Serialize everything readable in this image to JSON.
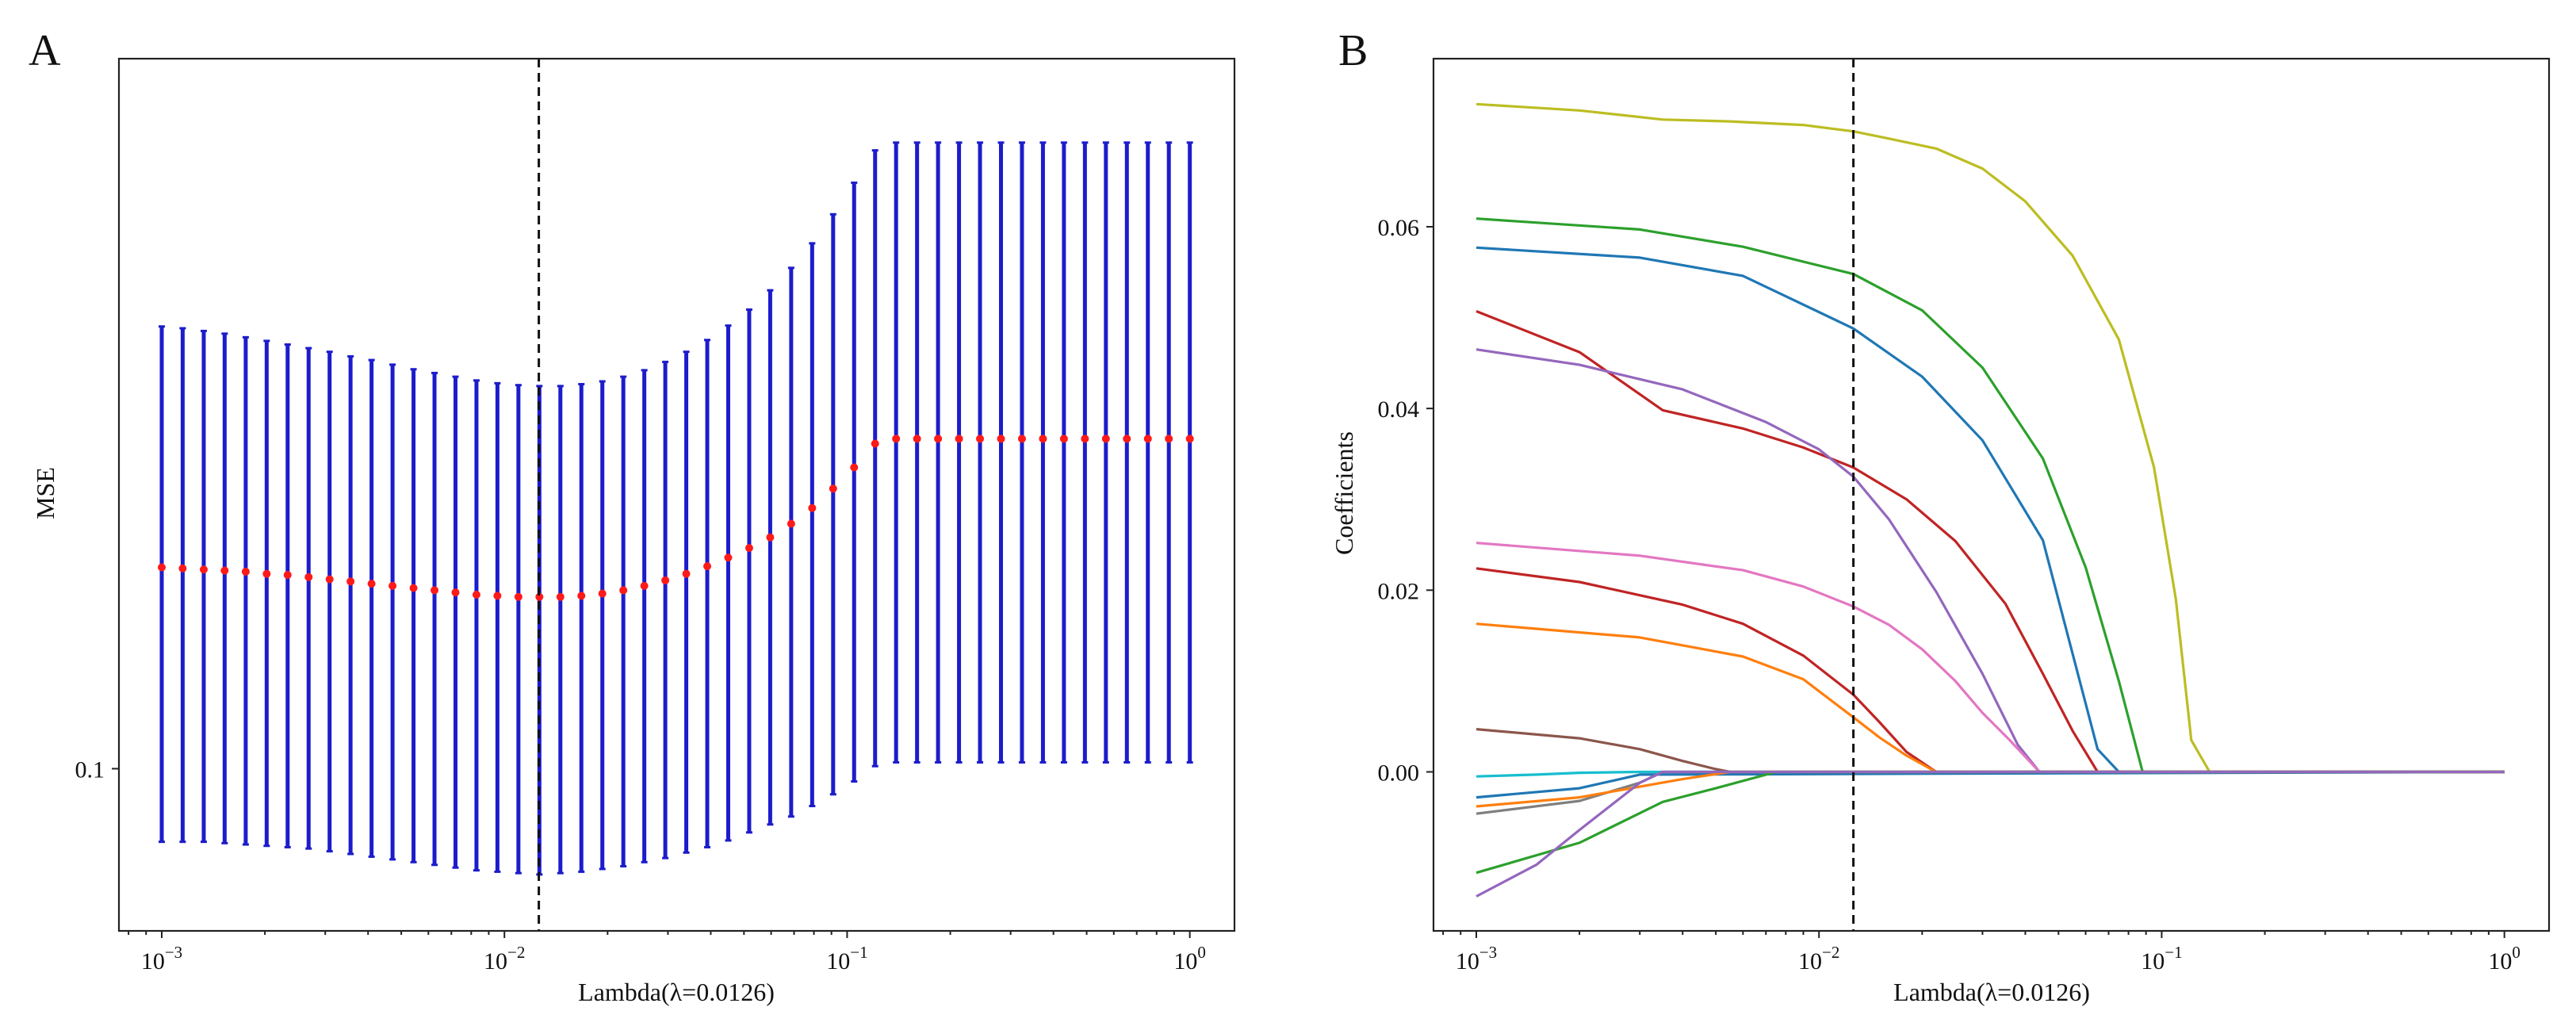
{
  "chart_data": [
    {
      "panel": "A",
      "type": "scatter",
      "subtype": "cv-error-bars",
      "xscale": "log",
      "xlim": [
        0.00075,
        1.35
      ],
      "yscale": "log",
      "ylim": [
        0.088,
        0.175
      ],
      "xlabel": "Lambda(λ=0.0126)",
      "ylabel": "MSE",
      "x_ticks": [
        {
          "value": 0.001,
          "base": "10",
          "exp": "−3"
        },
        {
          "value": 0.01,
          "base": "10",
          "exp": "−2"
        },
        {
          "value": 0.1,
          "base": "10",
          "exp": "−1"
        },
        {
          "value": 1,
          "base": "10",
          "exp": "0"
        }
      ],
      "y_ticks": [
        {
          "value": 0.1,
          "label": "0.1"
        }
      ],
      "selected_lambda": 0.0126,
      "series": [
        {
          "name": "mean MSE",
          "color": "#ff1a1a",
          "x": [
            0.001,
            0.001151,
            0.001326,
            0.001526,
            0.001758,
            0.002024,
            0.00233,
            0.002683,
            0.003089,
            0.003556,
            0.004095,
            0.004715,
            0.005429,
            0.006251,
            0.007197,
            0.008286,
            0.00954,
            0.010985,
            0.012648,
            0.014563,
            0.016768,
            0.019307,
            0.02223,
            0.025595,
            0.029471,
            0.033932,
            0.03907,
            0.044984,
            0.051795,
            0.059636,
            0.068665,
            0.07906,
            0.091029,
            0.104811,
            0.120679,
            0.13895,
            0.159986,
            0.184207,
            0.212095,
            0.244205,
            0.281177,
            0.323746,
            0.372759,
            0.429193,
            0.494171,
            0.568987,
            0.655129,
            0.754312,
            0.868511,
            1.0
          ],
          "y": [
            0.1172,
            0.1171,
            0.117,
            0.1169,
            0.1168,
            0.1166,
            0.1165,
            0.1163,
            0.1161,
            0.1159,
            0.1157,
            0.1155,
            0.1153,
            0.1151,
            0.1149,
            0.1147,
            0.1146,
            0.1145,
            0.1145,
            0.1145,
            0.1146,
            0.1148,
            0.1151,
            0.1155,
            0.116,
            0.1166,
            0.1173,
            0.1181,
            0.119,
            0.12,
            0.1213,
            0.1228,
            0.1247,
            0.1268,
            0.1292,
            0.1297,
            0.1297,
            0.1297,
            0.1297,
            0.1297,
            0.1297,
            0.1297,
            0.1297,
            0.1297,
            0.1297,
            0.1297,
            0.1297,
            0.1297,
            0.1297,
            0.1297
          ]
        },
        {
          "name": "error bars",
          "color": "#1c1ccc",
          "lower": [
            0.0944,
            0.0944,
            0.0944,
            0.0943,
            0.0942,
            0.0941,
            0.094,
            0.0939,
            0.0937,
            0.0935,
            0.0933,
            0.0931,
            0.0929,
            0.0927,
            0.0925,
            0.0923,
            0.0922,
            0.0921,
            0.092,
            0.0921,
            0.0922,
            0.0924,
            0.0926,
            0.0929,
            0.0932,
            0.0936,
            0.094,
            0.0945,
            0.0951,
            0.0957,
            0.0963,
            0.0971,
            0.098,
            0.099,
            0.1002,
            0.1005,
            0.1005,
            0.1005,
            0.1005,
            0.1005,
            0.1005,
            0.1005,
            0.1005,
            0.1005,
            0.1005,
            0.1005,
            0.1005,
            0.1005,
            0.1005,
            0.1005
          ],
          "upper": [
            0.1417,
            0.1415,
            0.1412,
            0.1409,
            0.1405,
            0.1401,
            0.1397,
            0.1393,
            0.1389,
            0.1384,
            0.138,
            0.1375,
            0.137,
            0.1366,
            0.1362,
            0.1358,
            0.1355,
            0.1353,
            0.1352,
            0.1352,
            0.1354,
            0.1357,
            0.1362,
            0.1369,
            0.1378,
            0.1389,
            0.1402,
            0.1418,
            0.1436,
            0.1458,
            0.1484,
            0.1513,
            0.1548,
            0.1587,
            0.1628,
            0.1638,
            0.1638,
            0.1638,
            0.1638,
            0.1638,
            0.1638,
            0.1638,
            0.1638,
            0.1638,
            0.1638,
            0.1638,
            0.1638,
            0.1638,
            0.1638,
            0.1638
          ]
        }
      ]
    },
    {
      "panel": "B",
      "type": "line",
      "subtype": "lasso-coefficient-paths",
      "xscale": "log",
      "xlim": [
        0.00075,
        1.35
      ],
      "ylim": [
        -0.0175,
        0.0785
      ],
      "xlabel": "Lambda(λ=0.0126)",
      "ylabel": "Coefficients",
      "x_ticks": [
        {
          "value": 0.001,
          "base": "10",
          "exp": "−3"
        },
        {
          "value": 0.01,
          "base": "10",
          "exp": "−2"
        },
        {
          "value": 0.1,
          "base": "10",
          "exp": "−1"
        },
        {
          "value": 1,
          "base": "10",
          "exp": "0"
        }
      ],
      "y_ticks": [
        {
          "value": 0.0,
          "label": "0.00"
        },
        {
          "value": 0.02,
          "label": "0.02"
        },
        {
          "value": 0.04,
          "label": "0.04"
        },
        {
          "value": 0.06,
          "label": "0.06"
        }
      ],
      "selected_lambda": 0.0126,
      "series": [
        {
          "name": "coef-olive",
          "color": "#bcbd22",
          "x": [
            0.001,
            0.002,
            0.0035,
            0.0055,
            0.009,
            0.0126,
            0.016,
            0.022,
            0.03,
            0.04,
            0.055,
            0.075,
            0.095,
            0.11,
            0.122,
            0.138,
            1.0
          ],
          "y": [
            0.0735,
            0.0728,
            0.0718,
            0.0716,
            0.0712,
            0.0705,
            0.0697,
            0.0686,
            0.0664,
            0.0628,
            0.0568,
            0.0476,
            0.0335,
            0.019,
            0.0035,
            0.0,
            0.0
          ]
        },
        {
          "name": "coef-green",
          "color": "#2ca02c",
          "x": [
            0.001,
            0.003,
            0.006,
            0.0126,
            0.02,
            0.03,
            0.045,
            0.06,
            0.075,
            0.088,
            1.0
          ],
          "y": [
            0.0609,
            0.0597,
            0.0578,
            0.0548,
            0.0508,
            0.0445,
            0.0345,
            0.0225,
            0.01,
            0.0,
            0.0
          ]
        },
        {
          "name": "coef-blue",
          "color": "#1f77b4",
          "x": [
            0.001,
            0.003,
            0.006,
            0.0126,
            0.02,
            0.03,
            0.045,
            0.065,
            0.075,
            1.0
          ],
          "y": [
            0.0577,
            0.0566,
            0.0546,
            0.0488,
            0.0435,
            0.0365,
            0.0255,
            0.0025,
            0.0,
            0.0
          ]
        },
        {
          "name": "coef-red-upper",
          "color": "#c02424",
          "x": [
            0.001,
            0.002,
            0.0035,
            0.006,
            0.009,
            0.0126,
            0.018,
            0.025,
            0.035,
            0.045,
            0.055,
            0.065,
            1.0
          ],
          "y": [
            0.0507,
            0.0462,
            0.0398,
            0.0378,
            0.0357,
            0.0335,
            0.03,
            0.0254,
            0.0185,
            0.0108,
            0.0045,
            0.0,
            0.0
          ]
        },
        {
          "name": "coef-purple",
          "color": "#9467bd",
          "x": [
            0.001,
            0.002,
            0.004,
            0.007,
            0.01,
            0.0126,
            0.016,
            0.022,
            0.03,
            0.038,
            0.044,
            1.0
          ],
          "y": [
            0.0465,
            0.0448,
            0.0421,
            0.0385,
            0.0355,
            0.0325,
            0.0278,
            0.0198,
            0.0108,
            0.003,
            0.0,
            0.0
          ]
        },
        {
          "name": "coef-pink",
          "color": "#e377c2",
          "x": [
            0.001,
            0.003,
            0.006,
            0.009,
            0.0126,
            0.016,
            0.02,
            0.025,
            0.03,
            0.036,
            0.044,
            1.0
          ],
          "y": [
            0.0252,
            0.0238,
            0.0222,
            0.0204,
            0.0182,
            0.0162,
            0.0135,
            0.01,
            0.0065,
            0.0035,
            0.0,
            0.0
          ]
        },
        {
          "name": "coef-red-lower",
          "color": "#c02424",
          "x": [
            0.001,
            0.002,
            0.004,
            0.006,
            0.009,
            0.0126,
            0.015,
            0.018,
            0.021,
            0.022,
            1.0
          ],
          "y": [
            0.0224,
            0.0209,
            0.0184,
            0.0163,
            0.0128,
            0.0085,
            0.0055,
            0.0022,
            0.0005,
            0.0,
            0.0
          ]
        },
        {
          "name": "coef-orange",
          "color": "#ff7f0e",
          "x": [
            0.001,
            0.003,
            0.006,
            0.009,
            0.0126,
            0.015,
            0.018,
            0.021,
            0.022,
            1.0
          ],
          "y": [
            0.0163,
            0.0148,
            0.0127,
            0.0102,
            0.006,
            0.0038,
            0.0018,
            0.0004,
            0.0,
            0.0
          ]
        },
        {
          "name": "coef-brown",
          "color": "#8c564b",
          "x": [
            0.001,
            0.002,
            0.003,
            0.004,
            0.005,
            0.0055,
            1.0
          ],
          "y": [
            0.0047,
            0.0037,
            0.0025,
            0.0012,
            0.0003,
            0.0,
            0.0
          ]
        },
        {
          "name": "coef-cyan",
          "color": "#17becf",
          "x": [
            0.001,
            0.0015,
            0.002,
            0.003,
            0.004,
            1.0
          ],
          "y": [
            -0.0005,
            -0.0003,
            -0.0001,
            0.0,
            0.0,
            0.0
          ]
        },
        {
          "name": "coef-steelblue",
          "color": "#1f77b4",
          "x": [
            0.001,
            0.002,
            0.003,
            1.0
          ],
          "y": [
            -0.0028,
            -0.0018,
            -0.0003,
            0.0
          ]
        },
        {
          "name": "coef-gray",
          "color": "#7f7f7f",
          "x": [
            0.001,
            0.002,
            0.003,
            0.0035,
            1.0
          ],
          "y": [
            -0.0046,
            -0.0032,
            -0.0012,
            0.0,
            0.0
          ]
        },
        {
          "name": "coef-orange-neg",
          "color": "#ff7f0e",
          "x": [
            0.001,
            0.002,
            0.004,
            0.0055,
            1.0
          ],
          "y": [
            -0.0038,
            -0.0028,
            -0.0008,
            0.0,
            0.0
          ]
        },
        {
          "name": "coef-green-neg",
          "color": "#2ca02c",
          "x": [
            0.001,
            0.002,
            0.0035,
            0.005,
            0.0075,
            1.0
          ],
          "y": [
            -0.0111,
            -0.0078,
            -0.0033,
            -0.0018,
            0.0,
            0.0
          ]
        },
        {
          "name": "coef-violet-neg",
          "color": "#9467bd",
          "x": [
            0.001,
            0.0015,
            0.002,
            0.003,
            0.0035,
            1.0
          ],
          "y": [
            -0.0137,
            -0.0102,
            -0.0064,
            -0.0012,
            0.0,
            0.0
          ]
        }
      ]
    }
  ],
  "panels": [
    {
      "letter": "A"
    },
    {
      "letter": "B"
    }
  ]
}
